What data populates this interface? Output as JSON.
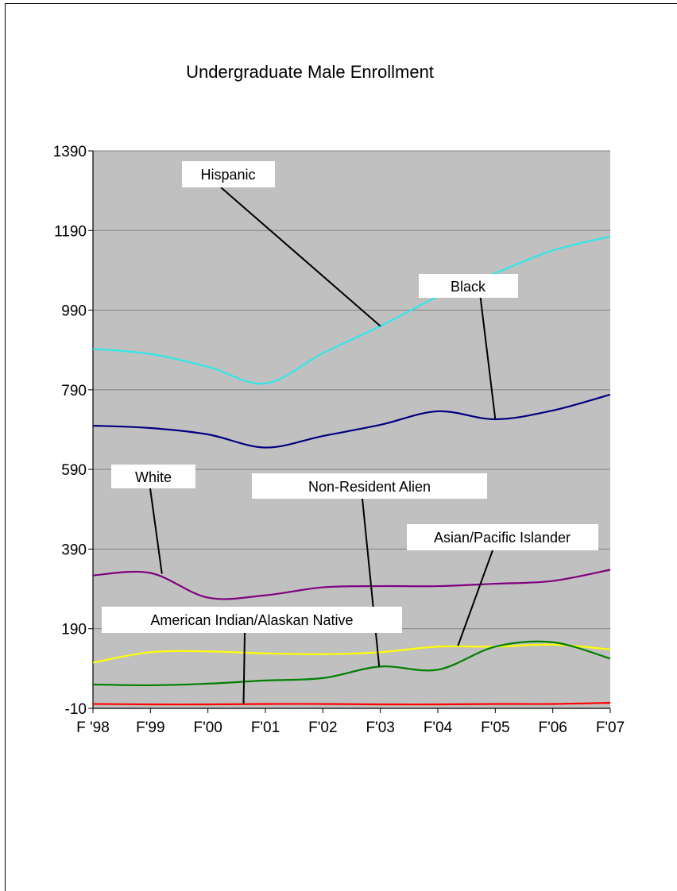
{
  "chart_data": {
    "type": "line",
    "title": "Undergraduate Male Enrollment",
    "xlabel": "",
    "ylabel": "",
    "categories": [
      "F '98",
      "F'99",
      "F'00",
      "F'01",
      "F'02",
      "F'03",
      "F'04",
      "F'05",
      "F'06",
      "F'07"
    ],
    "yticks": [
      -10,
      190,
      390,
      590,
      790,
      990,
      1190,
      1390
    ],
    "ylim": [
      -10,
      1390
    ],
    "grid": true,
    "plot_background": "#c0c0c0",
    "series": [
      {
        "name": "Hispanic",
        "color": "#33e6e6",
        "values": [
          893,
          880,
          848,
          806,
          882,
          950,
          1024,
          1083,
          1140,
          1175
        ]
      },
      {
        "name": "Black",
        "color": "#000080",
        "values": [
          700,
          694,
          678,
          645,
          674,
          702,
          736,
          716,
          738,
          778
        ]
      },
      {
        "name": "White",
        "color": "#800080",
        "values": [
          324,
          330,
          268,
          274,
          294,
          297,
          297,
          303,
          310,
          338
        ]
      },
      {
        "name": "Asian/Pacific Islander",
        "color": "#ffff00",
        "values": [
          105,
          131,
          133,
          128,
          126,
          131,
          145,
          145,
          150,
          138
        ]
      },
      {
        "name": "Non-Resident Alien",
        "color": "#008000",
        "values": [
          50,
          48,
          52,
          60,
          66,
          95,
          87,
          145,
          156,
          115
        ]
      },
      {
        "name": "American Indian/Alaskan Native",
        "color": "#ff0000",
        "values": [
          1,
          0,
          0,
          1,
          1,
          0,
          0,
          1,
          1,
          4
        ]
      }
    ],
    "annotations": [
      {
        "text": "Hispanic",
        "series": "Hispanic"
      },
      {
        "text": "Black",
        "series": "Black"
      },
      {
        "text": "White",
        "series": "White"
      },
      {
        "text": "Non-Resident Alien",
        "series": "Non-Resident Alien"
      },
      {
        "text": "Asian/Pacific Islander",
        "series": "Asian/Pacific Islander"
      },
      {
        "text": "American Indian/Alaskan Native",
        "series": "American Indian/Alaskan Native"
      }
    ]
  }
}
